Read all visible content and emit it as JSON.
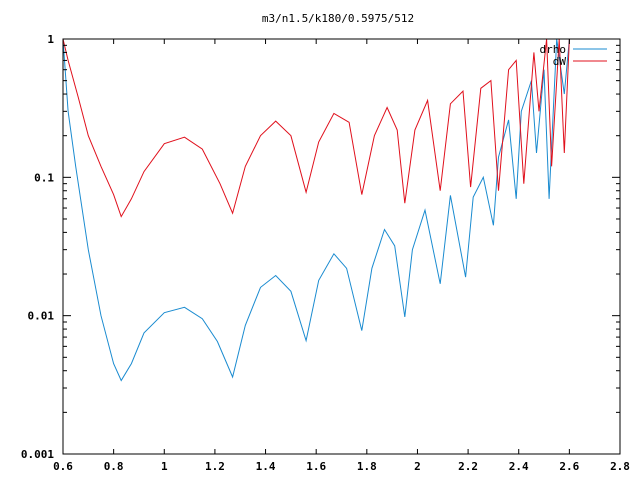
{
  "chart_data": {
    "type": "line",
    "title": "m3/n1.5/k180/0.5975/512",
    "xlabel": "",
    "ylabel": "",
    "xlim": [
      0.6,
      2.8
    ],
    "ylim": [
      0.001,
      1
    ],
    "yscale": "log",
    "grid": false,
    "legend_position": "top-right",
    "x_ticks": [
      0.6,
      0.8,
      1,
      1.2,
      1.4,
      1.6,
      1.8,
      2,
      2.2,
      2.4,
      2.6,
      2.8
    ],
    "x_tick_labels": [
      "0.6",
      "0.8",
      "1",
      "1.2",
      "1.4",
      "1.6",
      "1.8",
      "2",
      "2.2",
      "2.4",
      "2.6",
      "2.8"
    ],
    "y_ticks": [
      0.001,
      0.01,
      0.1,
      1
    ],
    "y_tick_labels": [
      "0.001",
      "0.01",
      "0.1",
      "1"
    ],
    "series": [
      {
        "name": "drho",
        "color": "#1a8bd0",
        "x": [
          0.6,
          0.62,
          0.65,
          0.7,
          0.75,
          0.8,
          0.83,
          0.87,
          0.92,
          1.0,
          1.08,
          1.15,
          1.21,
          1.27,
          1.32,
          1.38,
          1.44,
          1.5,
          1.56,
          1.61,
          1.67,
          1.72,
          1.78,
          1.82,
          1.87,
          1.91,
          1.95,
          1.98,
          2.03,
          2.09,
          2.13,
          2.19,
          2.22,
          2.26,
          2.3,
          2.32,
          2.36,
          2.39,
          2.41,
          2.45,
          2.47,
          2.5,
          2.52,
          2.55,
          2.58,
          2.6
        ],
        "y": [
          1.0,
          0.3,
          0.12,
          0.03,
          0.01,
          0.0045,
          0.0034,
          0.0045,
          0.0075,
          0.0105,
          0.0115,
          0.0095,
          0.0065,
          0.0036,
          0.0085,
          0.016,
          0.0195,
          0.015,
          0.0066,
          0.018,
          0.028,
          0.022,
          0.0078,
          0.022,
          0.042,
          0.032,
          0.0098,
          0.03,
          0.058,
          0.017,
          0.074,
          0.019,
          0.072,
          0.1,
          0.045,
          0.14,
          0.26,
          0.07,
          0.3,
          0.5,
          0.15,
          0.6,
          0.07,
          1.0,
          0.4,
          1.0
        ]
      },
      {
        "name": "dW",
        "color": "#e0101c",
        "x": [
          0.6,
          0.62,
          0.66,
          0.7,
          0.75,
          0.8,
          0.83,
          0.87,
          0.92,
          1.0,
          1.08,
          1.15,
          1.22,
          1.27,
          1.32,
          1.38,
          1.44,
          1.5,
          1.56,
          1.61,
          1.67,
          1.73,
          1.78,
          1.83,
          1.88,
          1.92,
          1.95,
          1.99,
          2.04,
          2.09,
          2.13,
          2.18,
          2.21,
          2.25,
          2.29,
          2.32,
          2.36,
          2.39,
          2.42,
          2.46,
          2.48,
          2.51,
          2.53,
          2.56,
          2.58,
          2.6
        ],
        "y": [
          1.0,
          0.7,
          0.38,
          0.2,
          0.12,
          0.075,
          0.052,
          0.07,
          0.11,
          0.175,
          0.195,
          0.16,
          0.09,
          0.055,
          0.12,
          0.2,
          0.255,
          0.2,
          0.078,
          0.18,
          0.29,
          0.25,
          0.075,
          0.2,
          0.32,
          0.22,
          0.065,
          0.22,
          0.36,
          0.08,
          0.34,
          0.42,
          0.085,
          0.44,
          0.5,
          0.08,
          0.6,
          0.7,
          0.09,
          0.8,
          0.3,
          1.0,
          0.12,
          1.0,
          0.15,
          1.0
        ]
      }
    ]
  }
}
